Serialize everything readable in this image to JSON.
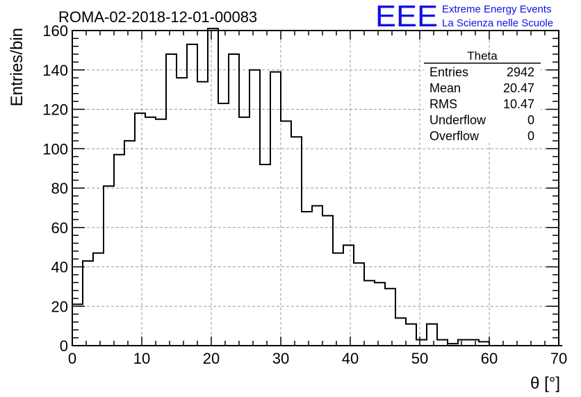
{
  "header": {
    "title": "ROMA-02-2018-12-01-00083",
    "logo_text": "EEE",
    "logo_line1": "Extreme Energy Events",
    "logo_line2": "La Scienza nelle Scuole",
    "logo_color": "#1010e8"
  },
  "stats": {
    "name": "Theta",
    "rows": [
      {
        "label": "Entries",
        "value": "2942"
      },
      {
        "label": "Mean",
        "value": "20.47"
      },
      {
        "label": "RMS",
        "value": "10.47"
      },
      {
        "label": "Underflow",
        "value": "0"
      },
      {
        "label": "Overflow",
        "value": "0"
      }
    ]
  },
  "chart_data": {
    "type": "histogram",
    "title": "ROMA-02-2018-12-01-00083",
    "xlabel": "θ [°]",
    "ylabel": "Entries/bin",
    "xlim": [
      0,
      70
    ],
    "ylim": [
      0,
      160
    ],
    "xticks": [
      0,
      10,
      20,
      30,
      40,
      50,
      60,
      70
    ],
    "yticks": [
      0,
      20,
      40,
      60,
      80,
      100,
      120,
      140,
      160
    ],
    "grid": true,
    "bin_width": 1.5,
    "bin_edges_start": 0,
    "values": [
      21,
      43,
      47,
      81,
      97,
      104,
      118,
      116,
      115,
      148,
      136,
      153,
      134,
      161,
      123,
      148,
      116,
      140,
      92,
      139,
      114,
      106,
      68,
      71,
      66,
      47,
      51,
      42,
      33,
      32,
      29,
      14,
      11,
      3,
      11,
      3,
      1,
      3,
      3,
      2,
      0,
      0,
      0,
      0,
      0,
      0,
      0
    ]
  }
}
